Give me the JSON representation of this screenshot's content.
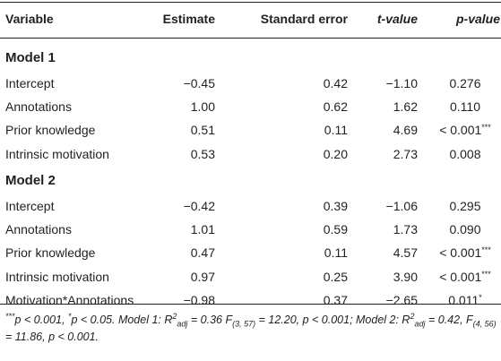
{
  "header": {
    "variable": "Variable",
    "estimate": "Estimate",
    "se": "Standard error",
    "t": "t-value",
    "p": "p-value"
  },
  "groups": [
    {
      "label": "Model 1",
      "rows": [
        {
          "variable": "Intercept",
          "estimate": "−0.45",
          "se": "0.42",
          "t": "−1.10",
          "p": "0.276",
          "sig": ""
        },
        {
          "variable": "Annotations",
          "estimate": "1.00",
          "se": "0.62",
          "t": "1.62",
          "p": "0.110",
          "sig": ""
        },
        {
          "variable": "Prior knowledge",
          "estimate": "0.51",
          "se": "0.11",
          "t": "4.69",
          "p": "< 0.001",
          "sig": "***"
        },
        {
          "variable": "Intrinsic motivation",
          "estimate": "0.53",
          "se": "0.20",
          "t": "2.73",
          "p": "0.008",
          "sig": ""
        }
      ]
    },
    {
      "label": "Model 2",
      "rows": [
        {
          "variable": "Intercept",
          "estimate": "−0.42",
          "se": "0.39",
          "t": "−1.06",
          "p": "0.295",
          "sig": ""
        },
        {
          "variable": "Annotations",
          "estimate": "1.01",
          "se": "0.59",
          "t": "1.73",
          "p": "0.090",
          "sig": ""
        },
        {
          "variable": "Prior knowledge",
          "estimate": "0.47",
          "se": "0.11",
          "t": "4.57",
          "p": "< 0.001",
          "sig": "***"
        },
        {
          "variable": "Intrinsic motivation",
          "estimate": "0.97",
          "se": "0.25",
          "t": "3.90",
          "p": "< 0.001",
          "sig": "***"
        },
        {
          "variable": "Motivation*Annotations",
          "estimate": "−0.98",
          "se": "0.37",
          "t": "−2.65",
          "p": "0.011",
          "sig": "*"
        }
      ]
    }
  ],
  "footnote": {
    "sig3_mark": "***",
    "sig3_text": "p < 0.001, ",
    "sig1_mark": "*",
    "sig1_text": "p < 0.05. Model 1: R",
    "r2_sup_1": "2",
    "r2_sub_1": "adj",
    "m1_stats_a": " = 0.36 F",
    "m1_df": "(3, 57)",
    "m1_stats_b": " = 12.20, p < 0.001; Model 2: R",
    "r2_sup_2": "2",
    "r2_sub_2": "adj",
    "m2_stats_a": " = 0.42, F",
    "m2_df": "(4, 56)",
    "m2_stats_b": " = 11.86, p < 0.001."
  }
}
